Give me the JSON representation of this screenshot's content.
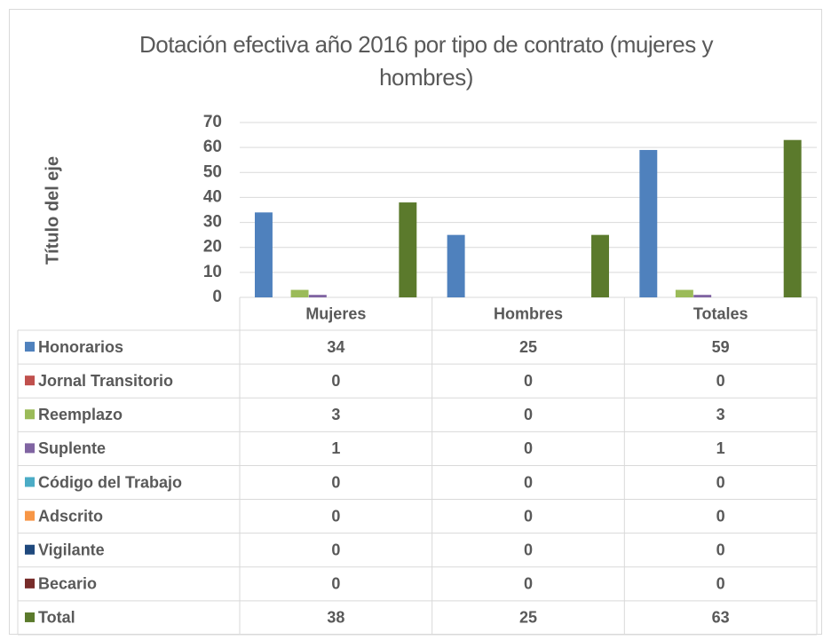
{
  "chart_data": {
    "type": "bar",
    "title": "Dotación efectiva año 2016 por tipo de contrato (mujeres y hombres)",
    "y_axis_label": "Título del eje",
    "categories": [
      "Mujeres",
      "Hombres",
      "Totales"
    ],
    "series": [
      {
        "name": "Honorarios",
        "color": "#4f81bd",
        "values": [
          34,
          25,
          59
        ]
      },
      {
        "name": "Jornal Transitorio",
        "color": "#c0504d",
        "values": [
          0,
          0,
          0
        ]
      },
      {
        "name": "Reemplazo",
        "color": "#9bbb59",
        "values": [
          3,
          0,
          3
        ]
      },
      {
        "name": "Suplente",
        "color": "#8064a2",
        "values": [
          1,
          0,
          1
        ]
      },
      {
        "name": "Código del Trabajo",
        "color": "#4bacc6",
        "values": [
          0,
          0,
          0
        ]
      },
      {
        "name": "Adscrito",
        "color": "#f79646",
        "values": [
          0,
          0,
          0
        ]
      },
      {
        "name": "Vigilante",
        "color": "#1f497d",
        "values": [
          0,
          0,
          0
        ]
      },
      {
        "name": "Becario",
        "color": "#772c2a",
        "values": [
          0,
          0,
          0
        ]
      },
      {
        "name": "Total",
        "color": "#5b7a2c",
        "values": [
          38,
          25,
          63
        ]
      }
    ],
    "ylim": [
      0,
      70
    ],
    "yticks": [
      0,
      10,
      20,
      30,
      40,
      50,
      60,
      70
    ],
    "grid": true,
    "data_table": true
  }
}
